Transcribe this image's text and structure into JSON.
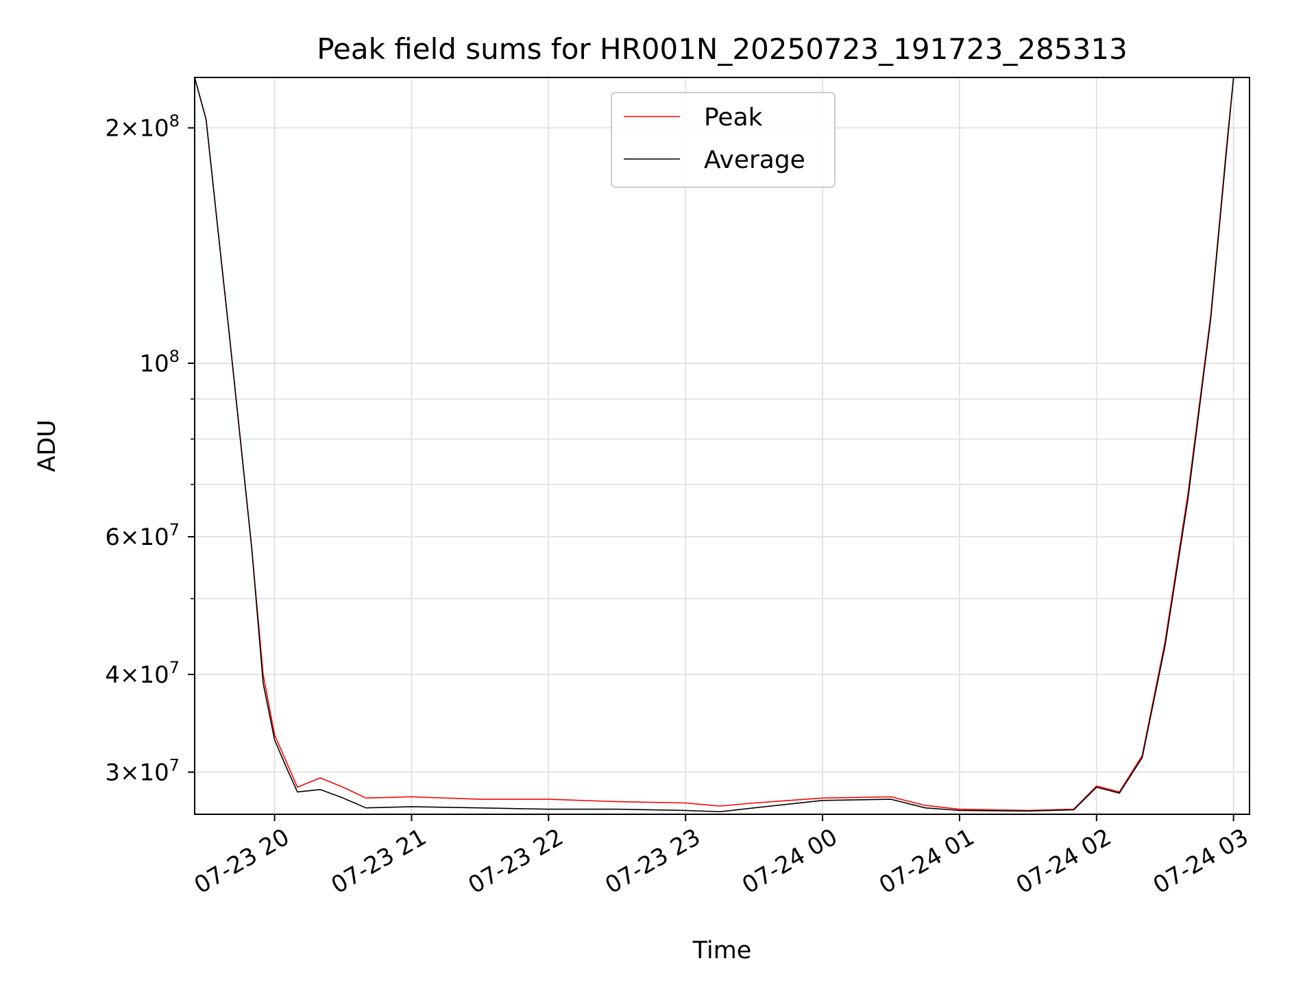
{
  "chart_data": {
    "type": "line",
    "title": "Peak field sums for HR001N_20250723_191723_285313",
    "xlabel": "Time",
    "ylabel": "ADU",
    "yscale": "log",
    "grid": true,
    "legend_position": "upper-center",
    "xlim": [
      "2025-07-23 19:25",
      "2025-07-24 03:07"
    ],
    "ylim": [
      26500000,
      232000000
    ],
    "x_ticks": [
      {
        "value": "2025-07-23 20:00",
        "label": "07-23 20"
      },
      {
        "value": "2025-07-23 21:00",
        "label": "07-23 21"
      },
      {
        "value": "2025-07-23 22:00",
        "label": "07-23 22"
      },
      {
        "value": "2025-07-23 23:00",
        "label": "07-23 23"
      },
      {
        "value": "2025-07-24 00:00",
        "label": "07-24 00"
      },
      {
        "value": "2025-07-24 01:00",
        "label": "07-24 01"
      },
      {
        "value": "2025-07-24 02:00",
        "label": "07-24 02"
      },
      {
        "value": "2025-07-24 03:00",
        "label": "07-24 03"
      }
    ],
    "y_ticks": [
      {
        "value": 200000000,
        "mantissa": "2×10",
        "exp": "8"
      },
      {
        "value": 100000000,
        "mantissa": "10",
        "exp": "8"
      },
      {
        "value": 60000000,
        "mantissa": "6×10",
        "exp": "7"
      },
      {
        "value": 40000000,
        "mantissa": "4×10",
        "exp": "7"
      },
      {
        "value": 30000000,
        "mantissa": "3×10",
        "exp": "7"
      }
    ],
    "y_minor_ticks": [
      90000000,
      80000000,
      70000000,
      50000000
    ],
    "series": [
      {
        "name": "Peak",
        "color": "#ff0000",
        "points": [
          [
            "2025-07-23 19:25",
            232000000
          ],
          [
            "2025-07-23 19:30",
            205000000
          ],
          [
            "2025-07-23 19:35",
            150000000
          ],
          [
            "2025-07-23 19:40",
            110000000
          ],
          [
            "2025-07-23 19:45",
            80000000
          ],
          [
            "2025-07-23 19:50",
            58000000
          ],
          [
            "2025-07-23 19:55",
            40000000
          ],
          [
            "2025-07-23 20:00",
            33500000
          ],
          [
            "2025-07-23 20:05",
            31000000
          ],
          [
            "2025-07-23 20:10",
            28700000
          ],
          [
            "2025-07-23 20:20",
            29500000
          ],
          [
            "2025-07-23 20:30",
            28700000
          ],
          [
            "2025-07-23 20:40",
            27800000
          ],
          [
            "2025-07-23 21:00",
            27900000
          ],
          [
            "2025-07-23 21:30",
            27700000
          ],
          [
            "2025-07-23 22:00",
            27700000
          ],
          [
            "2025-07-23 22:30",
            27500000
          ],
          [
            "2025-07-23 23:00",
            27400000
          ],
          [
            "2025-07-23 23:15",
            27150000
          ],
          [
            "2025-07-23 23:30",
            27400000
          ],
          [
            "2025-07-24 00:00",
            27800000
          ],
          [
            "2025-07-24 00:30",
            27900000
          ],
          [
            "2025-07-24 00:45",
            27200000
          ],
          [
            "2025-07-24 01:00",
            26900000
          ],
          [
            "2025-07-24 01:30",
            26800000
          ],
          [
            "2025-07-24 01:50",
            26900000
          ],
          [
            "2025-07-24 02:00",
            28800000
          ],
          [
            "2025-07-24 02:10",
            28300000
          ],
          [
            "2025-07-24 02:20",
            31500000
          ],
          [
            "2025-07-24 02:30",
            44000000
          ],
          [
            "2025-07-24 02:40",
            68000000
          ],
          [
            "2025-07-24 02:50",
            115000000
          ],
          [
            "2025-07-24 02:57",
            190000000
          ],
          [
            "2025-07-24 03:00",
            232000000
          ]
        ]
      },
      {
        "name": "Average",
        "color": "#000000",
        "points": [
          [
            "2025-07-23 19:25",
            232000000
          ],
          [
            "2025-07-23 19:30",
            205000000
          ],
          [
            "2025-07-23 19:35",
            150000000
          ],
          [
            "2025-07-23 19:40",
            110000000
          ],
          [
            "2025-07-23 19:45",
            80000000
          ],
          [
            "2025-07-23 19:50",
            58000000
          ],
          [
            "2025-07-23 19:55",
            39000000
          ],
          [
            "2025-07-23 20:00",
            33000000
          ],
          [
            "2025-07-23 20:05",
            30500000
          ],
          [
            "2025-07-23 20:10",
            28300000
          ],
          [
            "2025-07-23 20:20",
            28500000
          ],
          [
            "2025-07-23 20:30",
            27800000
          ],
          [
            "2025-07-23 20:40",
            27000000
          ],
          [
            "2025-07-23 21:00",
            27100000
          ],
          [
            "2025-07-23 21:30",
            27000000
          ],
          [
            "2025-07-23 22:00",
            26900000
          ],
          [
            "2025-07-23 22:30",
            26900000
          ],
          [
            "2025-07-23 23:00",
            26800000
          ],
          [
            "2025-07-23 23:15",
            26700000
          ],
          [
            "2025-07-23 23:30",
            27000000
          ],
          [
            "2025-07-24 00:00",
            27600000
          ],
          [
            "2025-07-24 00:30",
            27700000
          ],
          [
            "2025-07-24 00:45",
            27000000
          ],
          [
            "2025-07-24 01:00",
            26800000
          ],
          [
            "2025-07-24 01:30",
            26750000
          ],
          [
            "2025-07-24 01:50",
            26850000
          ],
          [
            "2025-07-24 02:00",
            28700000
          ],
          [
            "2025-07-24 02:10",
            28200000
          ],
          [
            "2025-07-24 02:20",
            31300000
          ],
          [
            "2025-07-24 02:30",
            43500000
          ],
          [
            "2025-07-24 02:40",
            67000000
          ],
          [
            "2025-07-24 02:50",
            114000000
          ],
          [
            "2025-07-24 02:57",
            188000000
          ],
          [
            "2025-07-24 03:00",
            232000000
          ]
        ]
      }
    ]
  }
}
